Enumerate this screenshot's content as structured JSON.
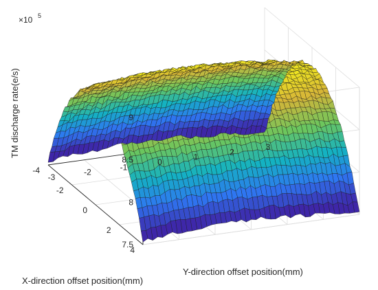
{
  "chart_data": {
    "type": "surface",
    "title": "",
    "xlabel": "X-direction offset position(mm)",
    "ylabel": "Y-direction offset position(mm)",
    "zlabel": "TM discharge rate(e/s)",
    "z_exponent_label": "×10",
    "z_exponent": "5",
    "x_range": [
      -4,
      4
    ],
    "y_range": [
      -3,
      3
    ],
    "z_range": [
      750000,
      900000
    ],
    "x_ticks": [
      "4",
      "2",
      "0",
      "-2",
      "-4"
    ],
    "y_ticks": [
      "-3",
      "-2",
      "-1",
      "0",
      "1",
      "2",
      "3"
    ],
    "z_ticks": [
      "7.5",
      "8",
      "8.5",
      "9"
    ],
    "grid": true,
    "colormap": "parula",
    "colors": [
      "#3e26a8",
      "#2e77f2",
      "#14b2c2",
      "#6bc65e",
      "#d6b538",
      "#f9fb15"
    ],
    "surface_profile": {
      "description_of_values": "approximate z at sampled points",
      "ridge_peak": 890000,
      "corner_x4_y_minus3": 768000,
      "corner_x4_y3": 775000,
      "corner_x_minus4_y_minus3": 760000,
      "corner_x_minus4_y3": 770000
    }
  }
}
